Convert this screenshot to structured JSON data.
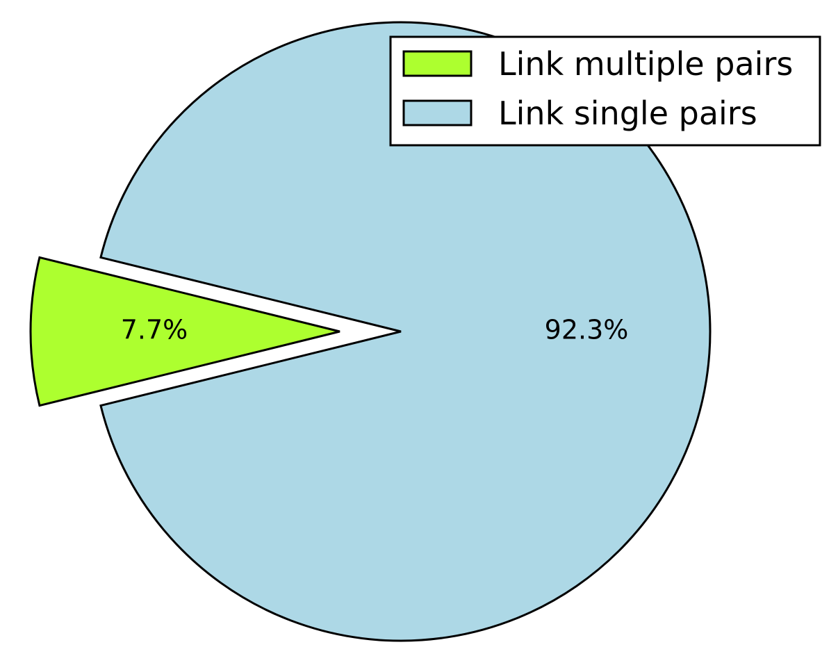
{
  "chart_data": {
    "type": "pie",
    "title": "",
    "slices": [
      {
        "name": "Link multiple pairs",
        "value": 7.7,
        "label": "7.7%",
        "color": "#adff2f",
        "exploded": true
      },
      {
        "name": "Link single pairs",
        "value": 92.3,
        "label": "92.3%",
        "color": "#add8e6",
        "exploded": false
      }
    ],
    "legend": {
      "placement": "top-right",
      "entries": [
        "Link multiple pairs",
        "Link single pairs"
      ]
    }
  }
}
